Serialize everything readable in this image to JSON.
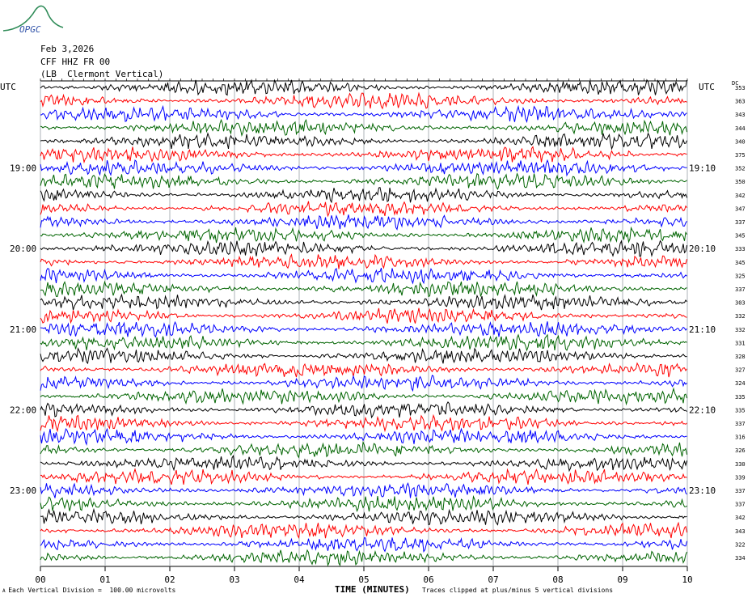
{
  "header": {
    "logo_text": "OPGC",
    "date": "Feb 3,2026",
    "channel": "CFF HHZ FR 00",
    "location": "(LB  Clermont Vertical)"
  },
  "chart_data": {
    "type": "line",
    "title": "",
    "xlabel": "TIME (MINUTES)",
    "ylabel": "",
    "left_axis_label": "UTC",
    "right_axis_label": "UTC",
    "right_column_label": "DC",
    "x_ticks": [
      "00",
      "01",
      "02",
      "03",
      "04",
      "05",
      "06",
      "07",
      "08",
      "09",
      "10"
    ],
    "xlim": [
      0,
      10
    ],
    "trace_colors": [
      "#000000",
      "#ff0000",
      "#0000ff",
      "#006400"
    ],
    "left_time_labels": [
      {
        "row": 6,
        "label": "19:00"
      },
      {
        "row": 12,
        "label": "20:00"
      },
      {
        "row": 18,
        "label": "21:00"
      },
      {
        "row": 24,
        "label": "22:00"
      },
      {
        "row": 30,
        "label": "23:00"
      }
    ],
    "right_time_labels": [
      {
        "row": 6,
        "label": "19:10"
      },
      {
        "row": 12,
        "label": "20:10"
      },
      {
        "row": 18,
        "label": "21:10"
      },
      {
        "row": 24,
        "label": "22:10"
      },
      {
        "row": 30,
        "label": "23:10"
      }
    ],
    "dc_offsets": [
      "353",
      "363",
      "343",
      "344",
      "340",
      "375",
      "352",
      "350",
      "342",
      "347",
      "337",
      "345",
      "333",
      "345",
      "325",
      "337",
      "303",
      "332",
      "332",
      "331",
      "328",
      "327",
      "324",
      "335",
      "335",
      "337",
      "316",
      "326",
      "330",
      "339",
      "337",
      "337",
      "342",
      "343",
      "322",
      "334"
    ]
  },
  "footer": {
    "scale_note": "Each Vertical Division =  100.00 microvolts",
    "clip_note": "Traces clipped at plus/minus 5 vertical divisions"
  }
}
